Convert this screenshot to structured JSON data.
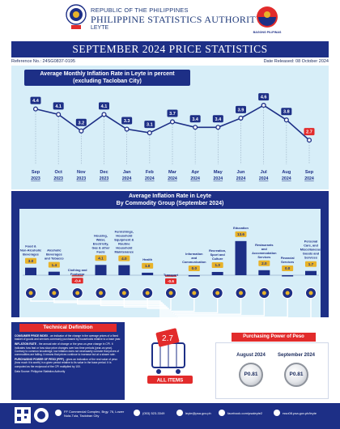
{
  "header": {
    "republic": "REPUBLIC OF THE PHILIPPINES",
    "agency": "PHILIPPINE STATISTICS AUTHORITY",
    "region": "LEYTE",
    "logo_right_text": "BAGONG PILIPINAS"
  },
  "title": "SEPTEMBER 2024 PRICE STATISTICS",
  "reference": "Reference No.: 24SG0837-0195",
  "release": "Date Released: 08 October 2024",
  "colors": {
    "navy": "#1d2f86",
    "red": "#e22b2b",
    "light_blue": "#d7eef8",
    "gold": "#e8b32a"
  },
  "chart_data": [
    {
      "type": "line",
      "title": "Average Monthly Inflation Rate in Leyte in percent",
      "subtitle": "(excluding Tacloban City)",
      "x": [
        {
          "month": "Sep",
          "year": "2023"
        },
        {
          "month": "Oct",
          "year": "2023"
        },
        {
          "month": "Nov",
          "year": "2023"
        },
        {
          "month": "Dec",
          "year": "2023"
        },
        {
          "month": "Jan",
          "year": "2024"
        },
        {
          "month": "Feb",
          "year": "2024"
        },
        {
          "month": "Mar",
          "year": "2024"
        },
        {
          "month": "Apr",
          "year": "2024"
        },
        {
          "month": "May",
          "year": "2024"
        },
        {
          "month": "Jun",
          "year": "2024"
        },
        {
          "month": "Jul",
          "year": "2024"
        },
        {
          "month": "Aug",
          "year": "2024"
        },
        {
          "month": "Sep",
          "year": "2024"
        }
      ],
      "values": [
        4.4,
        4.1,
        3.2,
        4.1,
        3.3,
        3.1,
        3.7,
        3.4,
        3.4,
        3.9,
        4.6,
        3.8,
        2.7
      ],
      "ylim": [
        2.0,
        5.0
      ],
      "grid": false
    },
    {
      "type": "bar",
      "title": "Average Inflation Rate in Leyte",
      "subtitle": "By Commodity Group (September 2024)",
      "categories": [
        "Food & Non-Alcoholic Beverages",
        "Alcoholic Beverages and Tobacco",
        "Clothing and Footwear",
        "Housing, Water, Electricity, Gas & other Fuels",
        "Furnishings, Household Equipment & Routine Household Maintenance",
        "Health",
        "Transport",
        "Information and Communication",
        "Recreation, Sport and Culture",
        "Education",
        "Restaurants and Accommodation Services",
        "Financial Services",
        "Personal Care, and Miscellaneous Goods and Services"
      ],
      "values": [
        3.0,
        1.4,
        -0.4,
        4.1,
        4.0,
        1.0,
        -0.6,
        0.0,
        1.3,
        13.6,
        2.0,
        0.0,
        1.7
      ],
      "value_labels": [
        "3.0",
        "1.4",
        "-0.4",
        "4.1",
        "4.0",
        "1.0",
        "-0.6",
        "0.0",
        "1.3",
        "13.6",
        "2.0",
        "0.0",
        "1.7"
      ],
      "total_label": "ALL ITEMS",
      "total_value": "2.7"
    }
  ],
  "technical": {
    "title": "Technical Definition",
    "cpi_term": "CONSUMER PRICE INDEX",
    "cpi_text": " - an indicator of the change in the average prices of a fixed basket of goods and services commonly purchased by households relative to a base year.",
    "inflation_term": "INFLATION RATE",
    "inflation_text": " - the annual rate of change or the year-on-year change in CPI. It indicates how fast or how slow price changes over two time periods (year-on-year). Contrary to common knowledge, low inflation does not necessarily connote that prices of commodities are falling. It means that prices continue to increase but at a slower rate.",
    "ppp_term": "PURCHASING POWER OF PESO (PPP)",
    "ppp_text": " - gives an indication of the real value of peso (how much it is worth) in a given period relative to its value in the base period. It is computed as the reciprocal of the CPI multiplied by 100.",
    "source": "Data Source: Philippine Statistics Authority"
  },
  "purchasing_power": {
    "title": "Purchasing Power of Peso",
    "items": [
      {
        "label": "August 2024",
        "value": "P0.81"
      },
      {
        "label": "September 2024",
        "value": "P0.81"
      }
    ]
  },
  "footer": {
    "address": "FF Commercial Complex, Brgy. 76, Lower Nula-Tula, Tacloban City",
    "phone": "(053) 523-3349",
    "email": "leyte@psa.gov.ph",
    "facebook": "facebook.com/psaleyte2",
    "website": "rsso08.psa.gov.ph/leyte"
  }
}
